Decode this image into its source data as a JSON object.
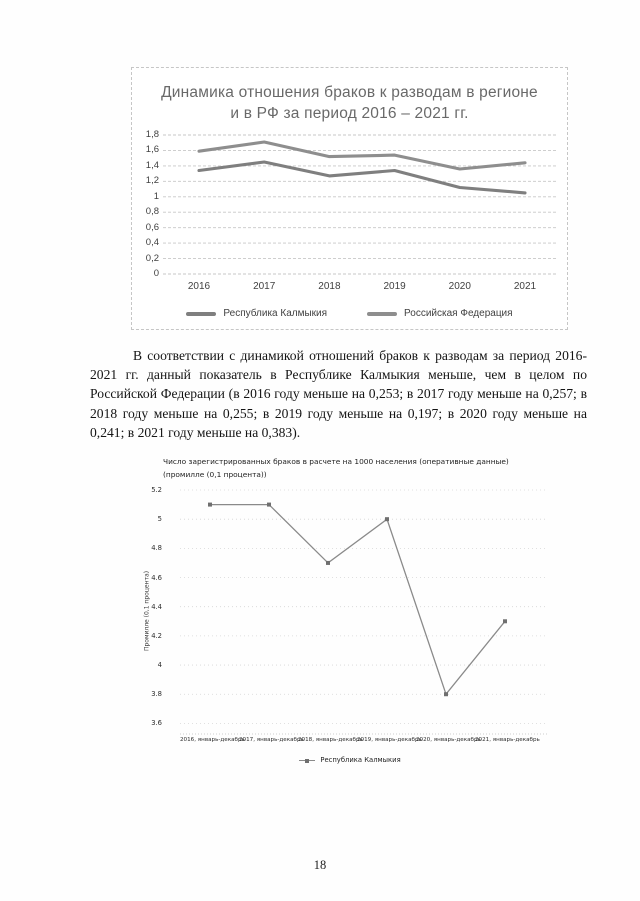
{
  "page": {
    "number": "18"
  },
  "paragraph": {
    "text": "В соответствии с динамикой отношений браков к разводам за период 2016-2021 гг. данный показатель в Республике Калмыкия меньше, чем в целом по Российской Федерации (в 2016 году меньше на 0,253; в 2017 году меньше на 0,257; в 2018 году меньше на 0,255; в 2019 году меньше на 0,197; в 2020 году меньше на 0,241; в 2021 году меньше на 0,383)."
  },
  "chart_data": [
    {
      "type": "line",
      "title": "Динамика отношения браков к разводам в регионе и в РФ за период 2016 – 2021 гг.",
      "categories": [
        "2016",
        "2017",
        "2018",
        "2019",
        "2020",
        "2021"
      ],
      "series": [
        {
          "name": "Республика Калмыкия",
          "values": [
            1.34,
            1.45,
            1.27,
            1.34,
            1.12,
            1.05
          ],
          "color": "#7f7f7f"
        },
        {
          "name": "Российская Федерация",
          "values": [
            1.59,
            1.71,
            1.52,
            1.54,
            1.36,
            1.44
          ],
          "color": "#8e8e8e"
        }
      ],
      "ylim": [
        0,
        1.8
      ],
      "yticks": [
        "1,8",
        "1,6",
        "1,4",
        "1,2",
        "1",
        "0,8",
        "0,6",
        "0,4",
        "0,2",
        "0"
      ],
      "grid": true,
      "gridline_color": "#c7c7c7",
      "title_color": "#696969",
      "legend_position": "bottom"
    },
    {
      "type": "line",
      "title_line1": "Число зарегистрированных браков в расчете на 1000 населения (оперативные данные)",
      "title_line2": "(промилле (0,1 процента))",
      "ylabel": "Промилле (0,1 процента)",
      "categories": [
        "2016, январь-декабрь",
        "2017, январь-декабрь",
        "2018, январь-декабрь",
        "2019, январь-декабрь",
        "2020, январь-декабрь",
        "2021, январь-декабрь"
      ],
      "series": [
        {
          "name": "Республика Калмыкия",
          "values": [
            5.1,
            5.1,
            4.7,
            5.0,
            3.8,
            4.3
          ],
          "color": "#8a8a8a",
          "marker_color": "#6f6f6f"
        }
      ],
      "ylim": [
        3.6,
        5.2
      ],
      "yticks": [
        "5.2",
        "5",
        "4.8",
        "4.6",
        "4.4",
        "4.2",
        "4",
        "3.8",
        "3.6"
      ],
      "grid": true,
      "gridline_color": "#cfcfcf",
      "legend_position": "bottom"
    }
  ]
}
